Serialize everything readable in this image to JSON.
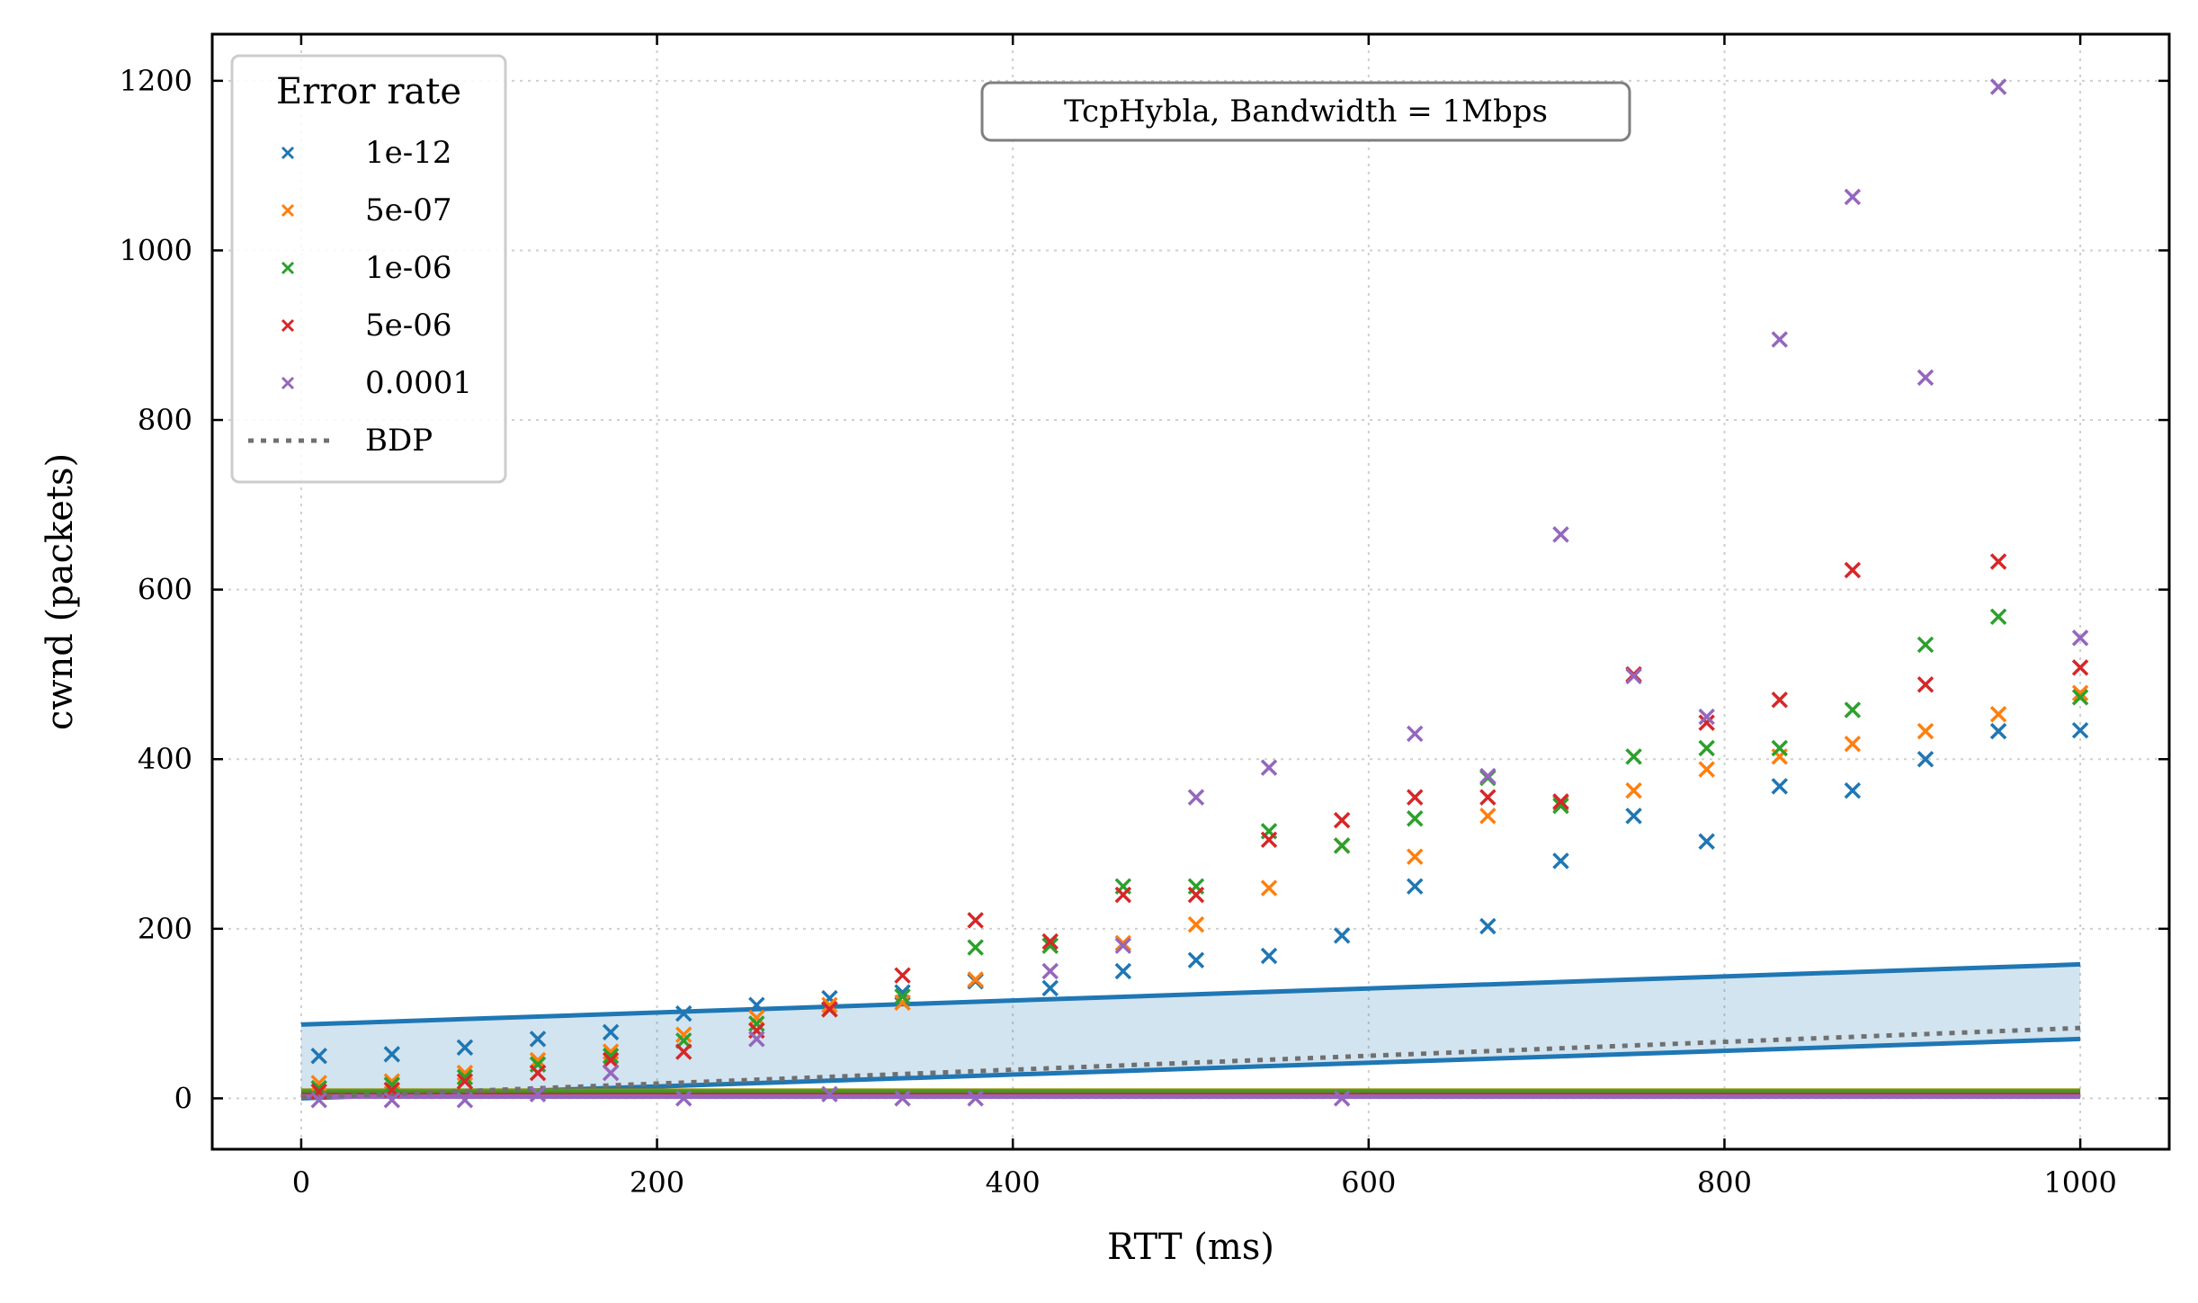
{
  "chart_data": {
    "type": "scatter",
    "annotation": "TcpHybla, Bandwidth = 1Mbps",
    "xlabel": "RTT (ms)",
    "ylabel": "cwnd (packets)",
    "xlim": [
      -50,
      1050
    ],
    "ylim": [
      -60,
      1255
    ],
    "xticks": [
      0,
      200,
      400,
      600,
      800,
      1000
    ],
    "yticks": [
      0,
      200,
      400,
      600,
      800,
      1000,
      1200
    ],
    "grid": true,
    "legend": {
      "title": "Error rate",
      "position": "top-left"
    },
    "x": [
      10,
      51,
      92,
      133,
      174,
      215,
      256,
      297,
      338,
      379,
      421,
      462,
      503,
      544,
      585,
      626,
      667,
      708,
      749,
      790,
      831,
      872,
      913,
      954,
      1000
    ],
    "series": [
      {
        "name": "1e-12",
        "color": "#1f77b4",
        "values": [
          50,
          52,
          60,
          70,
          78,
          100,
          110,
          118,
          125,
          138,
          130,
          150,
          163,
          168,
          192,
          250,
          203,
          280,
          333,
          303,
          368,
          363,
          400,
          433,
          434
        ]
      },
      {
        "name": "5e-07",
        "color": "#ff7f0e",
        "values": [
          18,
          20,
          30,
          45,
          55,
          75,
          95,
          110,
          113,
          140,
          180,
          183,
          205,
          248,
          298,
          285,
          333,
          348,
          363,
          388,
          403,
          418,
          433,
          453,
          478
        ]
      },
      {
        "name": "1e-06",
        "color": "#2ca02c",
        "values": [
          12,
          16,
          25,
          40,
          50,
          68,
          88,
          105,
          120,
          178,
          180,
          250,
          250,
          315,
          298,
          330,
          378,
          345,
          403,
          413,
          413,
          458,
          535,
          568,
          473
        ]
      },
      {
        "name": "5e-06",
        "color": "#d62728",
        "values": [
          8,
          10,
          20,
          30,
          45,
          55,
          80,
          105,
          145,
          210,
          185,
          240,
          240,
          305,
          328,
          355,
          355,
          350,
          500,
          443,
          470,
          623,
          488,
          633,
          508
        ]
      },
      {
        "name": "0.0001",
        "color": "#9467bd",
        "values": [
          -2,
          -2,
          -2,
          5,
          30,
          0,
          70,
          5,
          0,
          0,
          150,
          180,
          355,
          390,
          0,
          430,
          380,
          665,
          498,
          450,
          895,
          1063,
          850,
          1193,
          543
        ]
      }
    ],
    "bdp": {
      "name": "BDP",
      "color": "#707070",
      "x": [
        0,
        1000
      ],
      "values": [
        1,
        83
      ]
    },
    "band": {
      "color": "#1f77b4",
      "x": [
        0,
        1000
      ],
      "upper": [
        87,
        158
      ],
      "lower": [
        0,
        70
      ]
    },
    "flat_lines": [
      {
        "color": "#8c8c00",
        "value": 9
      },
      {
        "color": "#2ca02c",
        "value": 7
      },
      {
        "color": "#d62728",
        "value": 4
      },
      {
        "color": "#9467bd",
        "value": 2
      }
    ]
  }
}
